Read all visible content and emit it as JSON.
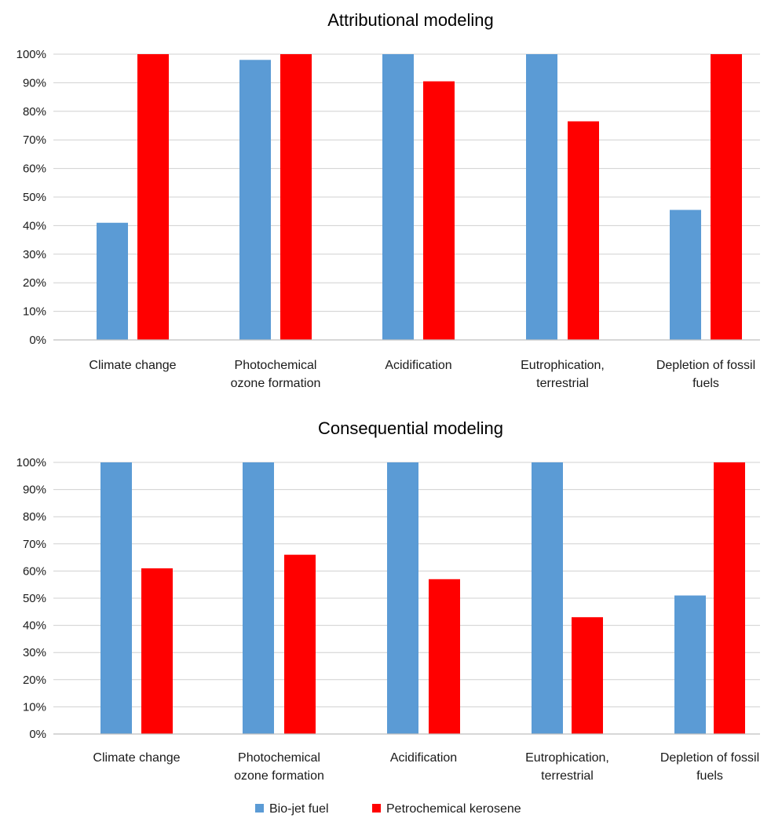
{
  "chart_data": [
    {
      "type": "bar",
      "title": "Attributional modeling",
      "categories": [
        "Climate change",
        "Photochemical ozone formation",
        "Acidification",
        "Eutrophication, terrestrial",
        "Depletion of fossil fuels"
      ],
      "category_lines": [
        [
          "Climate change"
        ],
        [
          "Photochemical",
          "ozone formation"
        ],
        [
          "Acidification"
        ],
        [
          "Eutrophication,",
          "terrestrial"
        ],
        [
          "Depletion of fossil",
          "fuels"
        ]
      ],
      "series": [
        {
          "name": "Bio-jet fuel",
          "color": "#5b9bd5",
          "values": [
            41,
            98,
            100,
            100,
            45.5
          ]
        },
        {
          "name": "Petrochemical kerosene",
          "color": "#ff0000",
          "values": [
            100,
            100,
            90.5,
            76.5,
            100
          ]
        }
      ],
      "ylim": [
        0,
        100
      ],
      "yticks": [
        "0%",
        "10%",
        "20%",
        "30%",
        "40%",
        "50%",
        "60%",
        "70%",
        "80%",
        "90%",
        "100%"
      ],
      "grid": true
    },
    {
      "type": "bar",
      "title": "Consequential modeling",
      "categories": [
        "Climate change",
        "Photochemical ozone formation",
        "Acidification",
        "Eutrophication, terrestrial",
        "Depletion of fossil fuels"
      ],
      "category_lines": [
        [
          "Climate change"
        ],
        [
          "Photochemical",
          "ozone formation"
        ],
        [
          "Acidification"
        ],
        [
          "Eutrophication,",
          "terrestrial"
        ],
        [
          "Depletion of fossil",
          "fuels"
        ]
      ],
      "series": [
        {
          "name": "Bio-jet fuel",
          "color": "#5b9bd5",
          "values": [
            100,
            100,
            100,
            100,
            51
          ]
        },
        {
          "name": "Petrochemical kerosene",
          "color": "#ff0000",
          "values": [
            61,
            66,
            57,
            43,
            100
          ]
        }
      ],
      "ylim": [
        0,
        100
      ],
      "yticks": [
        "0%",
        "10%",
        "20%",
        "30%",
        "40%",
        "50%",
        "60%",
        "70%",
        "80%",
        "90%",
        "100%"
      ],
      "grid": true
    }
  ],
  "legend": {
    "position": "bottom",
    "items": [
      {
        "label": "Bio-jet fuel",
        "color": "#5b9bd5"
      },
      {
        "label": "Petrochemical kerosene",
        "color": "#ff0000"
      }
    ]
  }
}
